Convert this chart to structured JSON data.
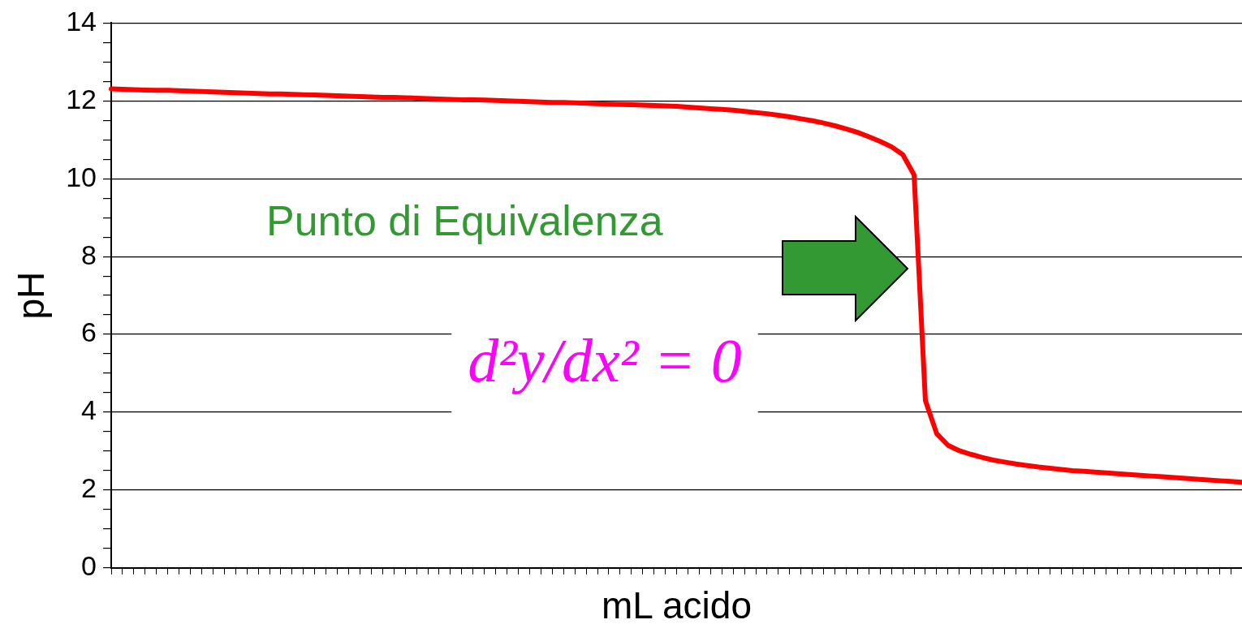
{
  "chart_data": {
    "type": "line",
    "xlabel": "mL acido",
    "ylabel": "pH",
    "categories": [
      null,
      null,
      null,
      null,
      null,
      null,
      null,
      null,
      null,
      null,
      null,
      null,
      null,
      null,
      null,
      null,
      null,
      null,
      null,
      null,
      null,
      null,
      null,
      null,
      null,
      null,
      null,
      null,
      null,
      null,
      null,
      null,
      null,
      null,
      null,
      null,
      null,
      null,
      null,
      null,
      null,
      null,
      null,
      null,
      null,
      null,
      null,
      null,
      null,
      null,
      null,
      null,
      null,
      null,
      null,
      null,
      null,
      null,
      null,
      null,
      null,
      null,
      null,
      null,
      null,
      null,
      null,
      null,
      null,
      null,
      null,
      null,
      null,
      null,
      null,
      null,
      null,
      null,
      null,
      null,
      null,
      null,
      null,
      null,
      null,
      null,
      null,
      null,
      null,
      null,
      null,
      null,
      null,
      null,
      null,
      null,
      null,
      null,
      null,
      null,
      null
    ],
    "series": [
      {
        "color": "#ff0000",
        "values": [
          12.31,
          12.3,
          12.29,
          12.28,
          12.27,
          12.27,
          12.26,
          12.25,
          12.24,
          12.23,
          12.22,
          12.21,
          12.2,
          12.19,
          12.18,
          12.18,
          12.17,
          12.16,
          12.15,
          12.14,
          12.13,
          12.12,
          12.11,
          12.1,
          12.09,
          12.09,
          12.08,
          12.07,
          12.06,
          12.05,
          12.04,
          12.03,
          12.03,
          12.02,
          12.01,
          12.0,
          11.99,
          11.98,
          11.97,
          11.96,
          11.96,
          11.95,
          11.94,
          11.93,
          11.92,
          11.91,
          11.9,
          11.89,
          11.88,
          11.87,
          11.86,
          11.84,
          11.82,
          11.8,
          11.78,
          11.76,
          11.73,
          11.7,
          11.67,
          11.63,
          11.59,
          11.54,
          11.49,
          11.43,
          11.36,
          11.28,
          11.19,
          11.08,
          10.96,
          10.82,
          10.62,
          10.1,
          4.3,
          3.45,
          3.15,
          3.01,
          2.92,
          2.84,
          2.77,
          2.72,
          2.67,
          2.63,
          2.59,
          2.56,
          2.53,
          2.5,
          2.48,
          2.46,
          2.44,
          2.42,
          2.4,
          2.38,
          2.36,
          2.34,
          2.32,
          2.3,
          2.28,
          2.26,
          2.24,
          2.22,
          2.2
        ]
      }
    ],
    "ylim": [
      0,
      14
    ],
    "yticks": [
      0,
      {
        "value": 0.5,
        "label": null
      },
      {
        "value": 1,
        "label": null
      },
      {
        "value": 1.5,
        "label": null
      },
      2,
      {
        "value": 2.5,
        "label": null
      },
      {
        "value": 3,
        "label": null
      },
      {
        "value": 3.5,
        "label": null
      },
      4,
      {
        "value": 4.5,
        "label": null
      },
      {
        "value": 5,
        "label": null
      },
      {
        "value": 5.5,
        "label": null
      },
      6,
      {
        "value": 6.5,
        "label": null
      },
      {
        "value": 7,
        "label": null
      },
      {
        "value": 7.5,
        "label": null
      },
      8,
      {
        "value": 8.5,
        "label": null
      },
      {
        "value": 9,
        "label": null
      },
      {
        "value": 9.5,
        "label": null
      },
      10,
      {
        "value": 10.5,
        "label": null
      },
      {
        "value": 11,
        "label": null
      },
      {
        "value": 11.5,
        "label": null
      },
      12,
      {
        "value": 12.5,
        "label": null
      },
      {
        "value": 13,
        "label": null
      },
      {
        "value": 13.5,
        "label": null
      },
      14
    ],
    "grid": "y",
    "legend": false,
    "marker": "none",
    "line_style": "solid",
    "tick_labels": "y",
    "annotations": [
      "Punto di Equivalenza",
      "d²y/dx² = 0"
    ]
  }
}
